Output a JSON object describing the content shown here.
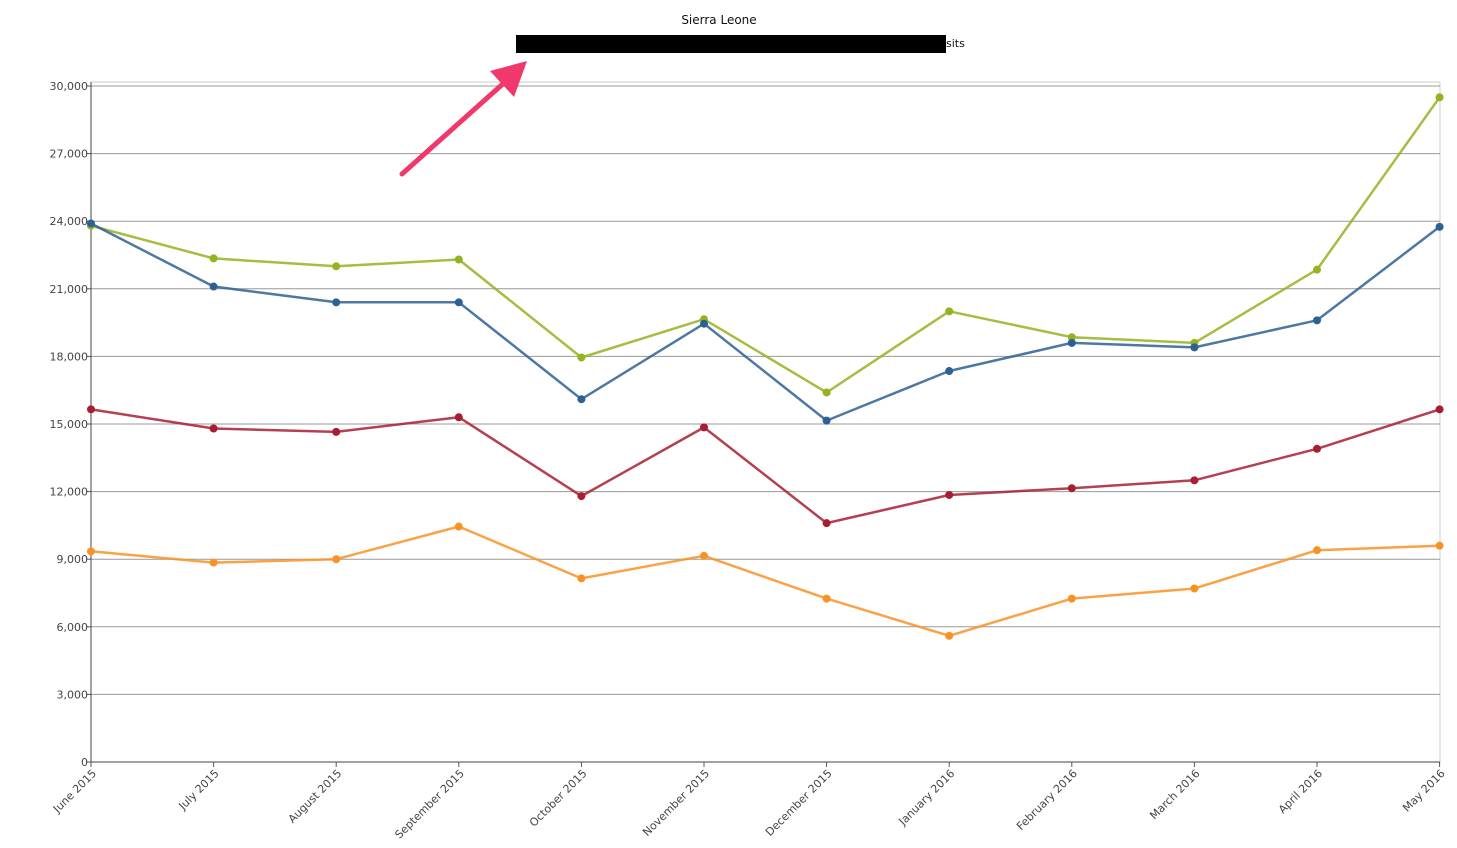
{
  "chart_data": {
    "type": "line",
    "title": "Sierra Leone",
    "legend_visible_text": "sits",
    "legend_placement": "top-center",
    "categories": [
      "June 2015",
      "July 2015",
      "August 2015",
      "September 2015",
      "October 2015",
      "November 2015",
      "December 2015",
      "January 2016",
      "February 2016",
      "March 2016",
      "April 2016",
      "May 2016"
    ],
    "ylim": [
      0,
      30000
    ],
    "yticks": [
      0,
      3000,
      6000,
      9000,
      12000,
      15000,
      18000,
      21000,
      24000,
      27000,
      30000
    ],
    "ytick_labels": [
      "0",
      "3,000",
      "6,000",
      "9,000",
      "12,000",
      "15,000",
      "18,000",
      "21,000",
      "24,000",
      "27,000",
      "30,000"
    ],
    "grid": true,
    "series": [
      {
        "color": "#94b321",
        "values": [
          23800,
          22350,
          22000,
          22300,
          17950,
          19650,
          16400,
          20000,
          18850,
          18600,
          21850,
          29500
        ]
      },
      {
        "color": "#2d6093",
        "values": [
          23900,
          21100,
          20400,
          20400,
          16100,
          19450,
          15150,
          17350,
          18600,
          18400,
          19600,
          23750
        ]
      },
      {
        "color": "#a71e31",
        "values": [
          15650,
          14800,
          14650,
          15300,
          11800,
          14850,
          10600,
          11850,
          12150,
          12500,
          13900,
          15650
        ]
      },
      {
        "color": "#f99226",
        "values": [
          9350,
          8850,
          9000,
          10450,
          8150,
          9150,
          7250,
          5600,
          7250,
          7700,
          9400,
          9600
        ]
      }
    ]
  },
  "annotation": {
    "arrow_color": "#f0386b",
    "redaction_color": "#000000"
  }
}
